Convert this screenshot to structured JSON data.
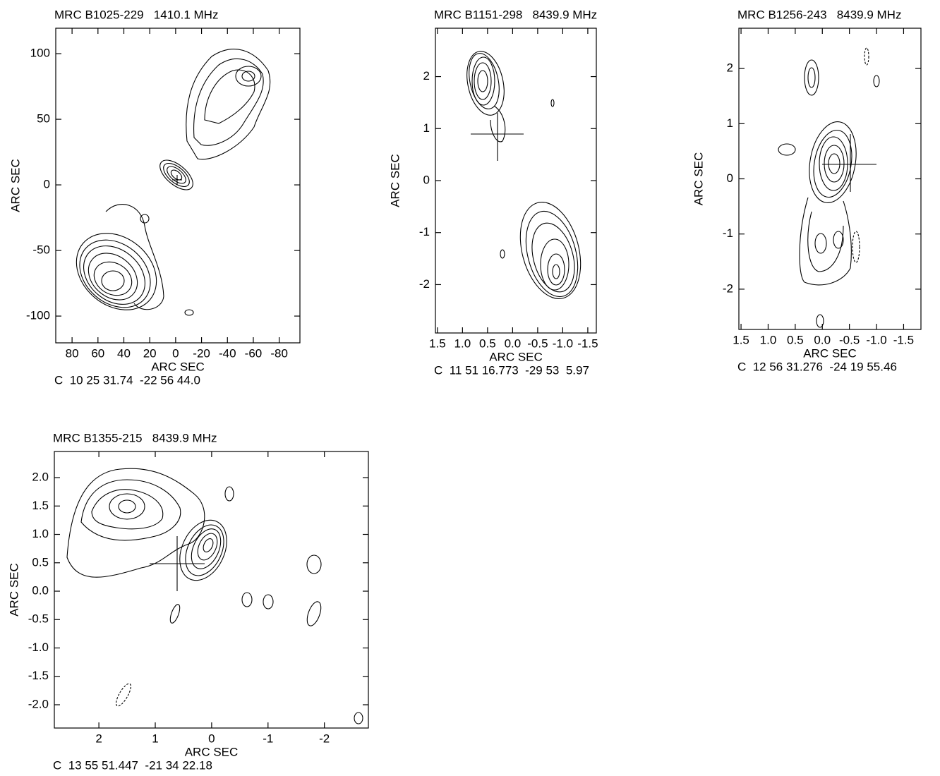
{
  "chart_data": [
    {
      "type": "contour",
      "title": "MRC B1025-229   1410.1 MHz",
      "xlabel": "ARC SEC",
      "ylabel": "ARC SEC",
      "footer": "C  10 25 31.74  -22 56 44.0",
      "xlim": [
        92.6,
        -96
      ],
      "ylim": [
        -120.4,
        119.4
      ],
      "xticks": [
        80,
        60,
        40,
        20,
        0,
        -20,
        -40,
        -60,
        -80
      ],
      "yticks": [
        100,
        50,
        0,
        -50,
        -100
      ]
    },
    {
      "type": "contour",
      "title": "MRC B1151-298   8439.9 MHz",
      "xlabel": "ARC SEC",
      "ylabel": "ARC SEC",
      "footer": "C  11 51 16.773  -29 53  5.97",
      "xlim": [
        1.54,
        -1.67
      ],
      "ylim": [
        -2.93,
        2.93
      ],
      "xticks": [
        1.5,
        {
          "value": 1,
          "label": "1.0"
        },
        0.5,
        {
          "value": 0,
          "label": "0.0"
        },
        -0.5,
        {
          "value": -1,
          "label": "-1.0"
        },
        -1.5
      ],
      "yticks": [
        2,
        1,
        0,
        -1,
        -2
      ]
    },
    {
      "type": "contour",
      "title": "MRC B1256-243   8439.9 MHz",
      "xlabel": "ARC SEC",
      "ylabel": "ARC SEC",
      "footer": "C  12 56 31.276  -24 19 55.46",
      "xlim": [
        1.54,
        -1.82
      ],
      "ylim": [
        -2.73,
        2.73
      ],
      "xticks": [
        1.5,
        {
          "value": 1,
          "label": "1.0"
        },
        0.5,
        {
          "value": 0,
          "label": "0.0"
        },
        -0.5,
        {
          "value": -1,
          "label": "-1.0"
        },
        -1.5
      ],
      "yticks": [
        2,
        1,
        0,
        -1,
        -2
      ]
    },
    {
      "type": "contour",
      "title": "MRC B1355-215   8439.9 MHz",
      "xlabel": "ARC SEC",
      "ylabel": "ARC SEC",
      "footer": "C  13 55 51.447  -21 34 22.18",
      "xlim": [
        2.79,
        -2.78
      ],
      "ylim": [
        -2.41,
        2.46
      ],
      "xticks": [
        2,
        1,
        0,
        -1,
        -2
      ],
      "yticks": [
        {
          "value": 2,
          "label": "2.0"
        },
        1.5,
        {
          "value": 1,
          "label": "1.0"
        },
        0.5,
        {
          "value": 0,
          "label": "0.0"
        },
        -0.5,
        {
          "value": -1,
          "label": "-1.0"
        },
        -1.5,
        {
          "value": -2,
          "label": "-2.0"
        }
      ]
    }
  ]
}
